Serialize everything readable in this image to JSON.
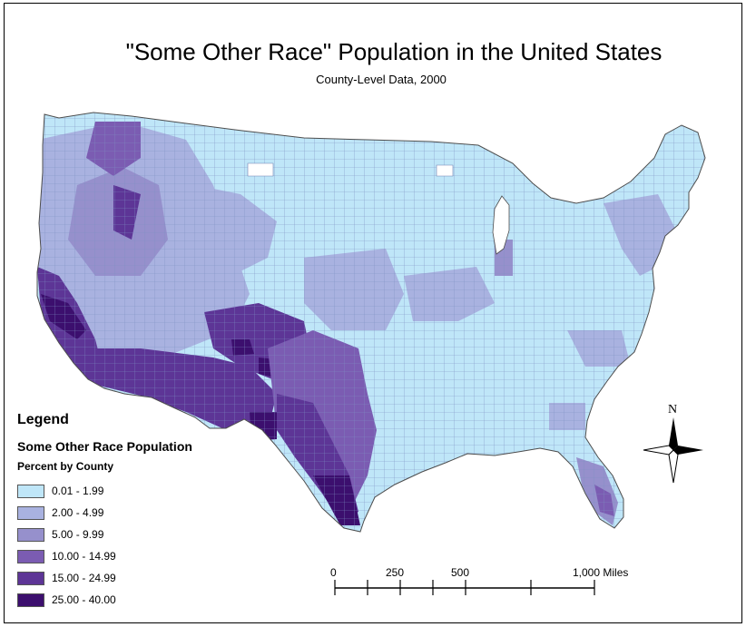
{
  "map": {
    "title": "\"Some Other Race\" Population in the United States",
    "subtitle": "County-Level Data, 2000"
  },
  "legend": {
    "title": "Legend",
    "layer": "Some Other Race Population",
    "field": "Percent by County",
    "classes": [
      {
        "label": "0.01 - 1.99",
        "color": "#bfe6f8"
      },
      {
        "label": "2.00 - 4.99",
        "color": "#a9b2e0"
      },
      {
        "label": "5.00 - 9.99",
        "color": "#9690cc"
      },
      {
        "label": "10.00 - 14.99",
        "color": "#7b5cb2"
      },
      {
        "label": "15.00 - 24.99",
        "color": "#5d3596"
      },
      {
        "label": "25.00 - 40.00",
        "color": "#3c0f6e"
      }
    ]
  },
  "scale_bar": {
    "labels": [
      "0",
      "250",
      "500",
      "1,000 Miles"
    ]
  },
  "north_arrow": {
    "label": "N",
    "icon": "north-arrow-icon"
  },
  "colors": {
    "background": "#ffffff",
    "county_border": "#6f7fb0",
    "outline": "#5a5a5a"
  }
}
